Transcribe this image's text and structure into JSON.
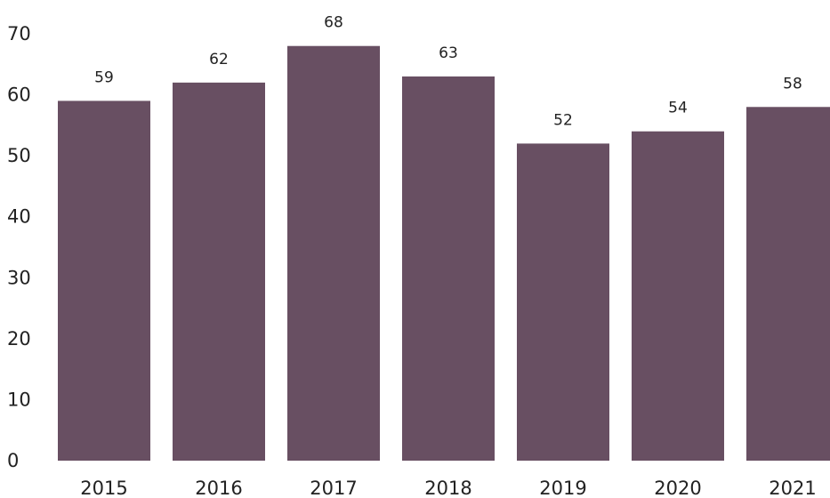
{
  "chart_data": {
    "type": "bar",
    "categories": [
      "2015",
      "2016",
      "2017",
      "2018",
      "2019",
      "2020",
      "2021"
    ],
    "values": [
      59,
      62,
      68,
      63,
      52,
      54,
      58
    ],
    "data_labels": [
      "59",
      "62",
      "68",
      "63",
      "52",
      "54",
      "58"
    ],
    "yticks": [
      0,
      10,
      20,
      30,
      40,
      50,
      60,
      70
    ],
    "ytick_labels": [
      "0",
      "10",
      "20",
      "30",
      "40",
      "50",
      "60",
      "70"
    ],
    "ylim": [
      0,
      70
    ],
    "grid": false,
    "legend": "none",
    "colors": {
      "bar": "#684f62",
      "text": "#222222"
    }
  }
}
